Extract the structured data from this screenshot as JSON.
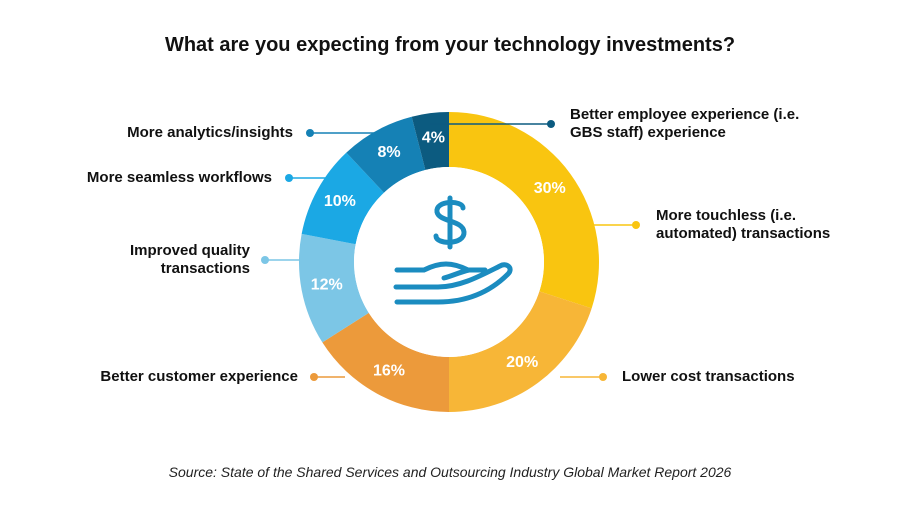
{
  "chart_data": {
    "type": "donut",
    "title": "What are you expecting from your technology investments?",
    "categories": [
      "More touchless (i.e. automated) transactions",
      "Lower cost transactions",
      "Better customer experience",
      "Improved quality transactions",
      "More seamless workflows",
      "More analytics/insights",
      "Better employee experience (i.e. GBS staff) experience"
    ],
    "values": [
      30,
      20,
      16,
      12,
      10,
      8,
      4
    ],
    "value_labels": [
      "30%",
      "20%",
      "16%",
      "12%",
      "10%",
      "8%",
      "4%"
    ],
    "colors": [
      "#f9c510",
      "#f7b637",
      "#ec9a3b",
      "#7cc6e6",
      "#1ba8e4",
      "#1581b5",
      "#0c5b80"
    ],
    "source": "Source: State of the Shared Services and Outsourcing Industry Global Market Report 2026"
  }
}
